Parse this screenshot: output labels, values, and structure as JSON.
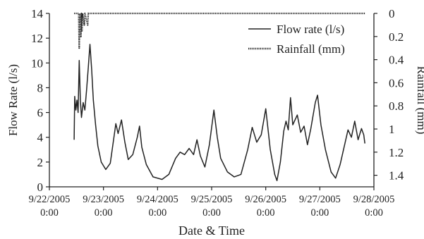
{
  "chart_data": {
    "type": "line",
    "xlabel": "Date & Time",
    "ylabel": "Flow Rate (l/s)",
    "y2label": "Rainfall (mm)",
    "xlim": [
      "2005-09-22 00:00",
      "2005-09-28 00:00"
    ],
    "ylim": [
      0,
      14
    ],
    "y2lim": [
      0,
      1.5
    ],
    "y2_inverted": true,
    "grid": false,
    "legend_position": "top-right",
    "x_ticks": [
      {
        "date": "9/22/2005",
        "time": "0:00"
      },
      {
        "date": "9/23/2005",
        "time": "0:00"
      },
      {
        "date": "9/24/2005",
        "time": "0:00"
      },
      {
        "date": "9/25/2005",
        "time": "0:00"
      },
      {
        "date": "9/26/2005",
        "time": "0:00"
      },
      {
        "date": "9/27/2005",
        "time": "0:00"
      },
      {
        "date": "9/28/2005",
        "time": "0:00"
      }
    ],
    "y_ticks": [
      "0",
      "2",
      "4",
      "6",
      "8",
      "10",
      "12",
      "14"
    ],
    "y2_ticks": [
      "0",
      "0.2",
      "0.4",
      "0.6",
      "0.8",
      "1",
      "1.2",
      "1.4"
    ],
    "series": [
      {
        "name": "Flow rate (l/s)",
        "axis": "left",
        "style": "solid",
        "color": "#222222",
        "points": [
          [
            "2005-09-22 11:00",
            3.8
          ],
          [
            "2005-09-22 11:15",
            7.3
          ],
          [
            "2005-09-22 11:45",
            6.2
          ],
          [
            "2005-09-22 12:15",
            7.0
          ],
          [
            "2005-09-22 12:45",
            6.0
          ],
          [
            "2005-09-22 13:15",
            10.2
          ],
          [
            "2005-09-22 13:45",
            7.0
          ],
          [
            "2005-09-22 14:15",
            5.6
          ],
          [
            "2005-09-22 15:00",
            6.8
          ],
          [
            "2005-09-22 15:45",
            6.2
          ],
          [
            "2005-09-22 16:30",
            7.8
          ],
          [
            "2005-09-22 17:15",
            9.6
          ],
          [
            "2005-09-22 18:00",
            11.5
          ],
          [
            "2005-09-22 18:45",
            9.5
          ],
          [
            "2005-09-22 19:30",
            7.0
          ],
          [
            "2005-09-22 20:30",
            5.0
          ],
          [
            "2005-09-22 21:30",
            3.3
          ],
          [
            "2005-09-22 23:00",
            2.0
          ],
          [
            "2005-09-23 01:00",
            1.4
          ],
          [
            "2005-09-23 03:00",
            1.9
          ],
          [
            "2005-09-23 04:30",
            3.8
          ],
          [
            "2005-09-23 05:30",
            5.1
          ],
          [
            "2005-09-23 06:30",
            4.3
          ],
          [
            "2005-09-23 08:00",
            5.4
          ],
          [
            "2005-09-23 09:30",
            3.6
          ],
          [
            "2005-09-23 11:00",
            2.2
          ],
          [
            "2005-09-23 13:00",
            2.6
          ],
          [
            "2005-09-23 15:00",
            4.0
          ],
          [
            "2005-09-23 16:00",
            4.9
          ],
          [
            "2005-09-23 17:00",
            3.2
          ],
          [
            "2005-09-23 19:00",
            1.8
          ],
          [
            "2005-09-23 22:00",
            0.8
          ],
          [
            "2005-09-24 02:00",
            0.6
          ],
          [
            "2005-09-24 05:00",
            1.0
          ],
          [
            "2005-09-24 08:00",
            2.3
          ],
          [
            "2005-09-24 10:00",
            2.8
          ],
          [
            "2005-09-24 12:00",
            2.6
          ],
          [
            "2005-09-24 14:00",
            3.1
          ],
          [
            "2005-09-24 16:00",
            2.6
          ],
          [
            "2005-09-24 17:30",
            3.8
          ],
          [
            "2005-09-24 19:00",
            2.5
          ],
          [
            "2005-09-24 21:00",
            1.6
          ],
          [
            "2005-09-24 23:00",
            3.4
          ],
          [
            "2005-09-25 01:00",
            6.2
          ],
          [
            "2005-09-25 02:30",
            4.0
          ],
          [
            "2005-09-25 04:00",
            2.3
          ],
          [
            "2005-09-25 07:00",
            1.2
          ],
          [
            "2005-09-25 10:00",
            0.8
          ],
          [
            "2005-09-25 13:00",
            1.0
          ],
          [
            "2005-09-25 16:00",
            3.0
          ],
          [
            "2005-09-25 18:00",
            4.8
          ],
          [
            "2005-09-25 20:00",
            3.6
          ],
          [
            "2005-09-25 22:00",
            4.2
          ],
          [
            "2005-09-26 00:00",
            6.3
          ],
          [
            "2005-09-26 02:00",
            3.0
          ],
          [
            "2005-09-26 04:00",
            1.0
          ],
          [
            "2005-09-26 05:00",
            0.5
          ],
          [
            "2005-09-26 06:30",
            2.0
          ],
          [
            "2005-09-26 08:00",
            4.5
          ],
          [
            "2005-09-26 09:00",
            5.3
          ],
          [
            "2005-09-26 10:00",
            4.6
          ],
          [
            "2005-09-26 11:00",
            7.2
          ],
          [
            "2005-09-26 12:00",
            5.0
          ],
          [
            "2005-09-26 14:00",
            5.8
          ],
          [
            "2005-09-26 15:30",
            4.4
          ],
          [
            "2005-09-26 17:00",
            4.9
          ],
          [
            "2005-09-26 18:30",
            3.4
          ],
          [
            "2005-09-26 20:00",
            4.7
          ],
          [
            "2005-09-26 22:00",
            6.8
          ],
          [
            "2005-09-26 23:00",
            7.4
          ],
          [
            "2005-09-27 00:30",
            5.0
          ],
          [
            "2005-09-27 02:30",
            3.0
          ],
          [
            "2005-09-27 05:00",
            1.2
          ],
          [
            "2005-09-27 07:00",
            0.7
          ],
          [
            "2005-09-27 09:00",
            1.8
          ],
          [
            "2005-09-27 11:00",
            3.4
          ],
          [
            "2005-09-27 12:30",
            4.6
          ],
          [
            "2005-09-27 14:00",
            4.0
          ],
          [
            "2005-09-27 15:30",
            5.3
          ],
          [
            "2005-09-27 17:00",
            3.8
          ],
          [
            "2005-09-27 18:30",
            4.7
          ],
          [
            "2005-09-27 19:30",
            4.2
          ],
          [
            "2005-09-27 20:00",
            3.5
          ]
        ]
      },
      {
        "name": "Rainfall (mm)",
        "axis": "right",
        "style": "dotted",
        "color": "#222222",
        "points": [
          [
            "2005-09-22 11:00",
            0.0
          ],
          [
            "2005-09-22 13:00",
            0.0
          ],
          [
            "2005-09-22 13:15",
            0.3
          ],
          [
            "2005-09-22 13:30",
            0.0
          ],
          [
            "2005-09-22 14:00",
            0.2
          ],
          [
            "2005-09-22 14:15",
            0.0
          ],
          [
            "2005-09-22 14:30",
            0.15
          ],
          [
            "2005-09-22 14:45",
            0.0
          ],
          [
            "2005-09-22 15:30",
            0.1
          ],
          [
            "2005-09-22 15:45",
            0.0
          ],
          [
            "2005-09-22 17:00",
            0.1
          ],
          [
            "2005-09-22 17:15",
            0.0
          ],
          [
            "2005-09-27 20:00",
            0.0
          ]
        ]
      }
    ]
  }
}
